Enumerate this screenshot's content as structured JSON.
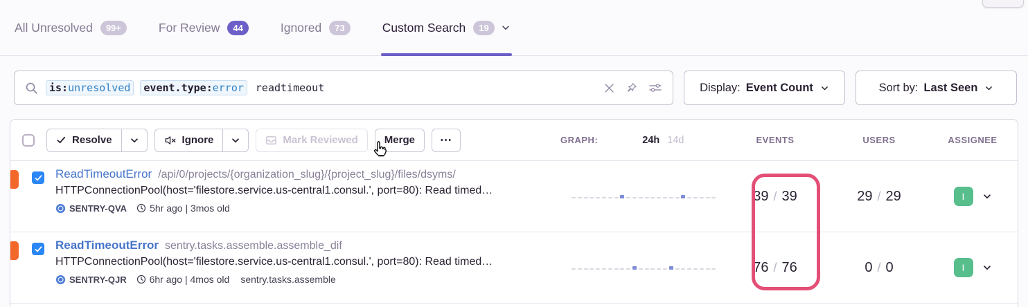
{
  "tabs": [
    {
      "label": "All Unresolved",
      "badge": "99+",
      "active": false
    },
    {
      "label": "For Review",
      "badge": "44",
      "active": false
    },
    {
      "label": "Ignored",
      "badge": "73",
      "active": false
    },
    {
      "label": "Custom Search",
      "badge": "19",
      "active": true
    }
  ],
  "search": {
    "tokens": [
      {
        "key": "is:",
        "value": "unresolved"
      },
      {
        "key": "event.type:",
        "value": "error"
      }
    ],
    "free_text": "readtimeout"
  },
  "display_dropdown": {
    "label": "Display:",
    "value": "Event Count"
  },
  "sort_dropdown": {
    "label": "Sort by:",
    "value": "Last Seen"
  },
  "toolbar": {
    "resolve_label": "Resolve",
    "ignore_label": "Ignore",
    "mark_reviewed_label": "Mark Reviewed",
    "merge_label": "Merge",
    "more_label": "⋯"
  },
  "columns": {
    "graph": "GRAPH:",
    "range_24h": "24h",
    "range_14d": "14d",
    "events": "EVENTS",
    "users": "USERS",
    "assignee": "ASSIGNEE"
  },
  "ui": {
    "count_divider": "/"
  },
  "rows": [
    {
      "title": "ReadTimeoutError",
      "subtitle": "/api/0/projects/{organization_slug}/{project_slug}/files/dsyms/",
      "message": "HTTPConnectionPool(host='filestore.service.us-central1.consul.', port=80): Read timed…",
      "project": "SENTRY-QVA",
      "age": "5hr ago | 3mos old",
      "events": "39",
      "events_total": "39",
      "users": "29",
      "users_total": "29",
      "assignee_initial": "I",
      "graph": [
        0,
        0,
        0,
        0,
        0,
        0,
        0,
        0,
        1,
        0,
        0,
        0,
        0,
        0,
        0,
        0,
        0,
        0,
        1,
        0,
        0,
        0,
        0,
        0
      ]
    },
    {
      "title": "ReadTimeoutError",
      "subtitle": "sentry.tasks.assemble.assemble_dif",
      "message": "HTTPConnectionPool(host='filestore.service.us-central1.consul.', port=80): Read timed…",
      "project": "SENTRY-QJR",
      "age": "6hr ago | 4mos old",
      "extra_tag": "sentry.tasks.assemble",
      "events": "76",
      "events_total": "76",
      "users": "0",
      "users_total": "0",
      "assignee_initial": "I",
      "graph": [
        0,
        0,
        0,
        0,
        0,
        0,
        0,
        0,
        0,
        0,
        1,
        0,
        0,
        0,
        0,
        0,
        1,
        0,
        0,
        0,
        0,
        0,
        0,
        0
      ]
    }
  ],
  "icons": {
    "search": "magnifier",
    "clear_search": "x-cross",
    "pin": "pushpin",
    "filter_sliders": "sliders",
    "resolve_check": "checkmark",
    "ignore_mute": "muted-speaker",
    "mark_reviewed": "archive-box",
    "chevron": "chevron-down",
    "clock": "clock",
    "project": "sentry-logo-circle"
  },
  "colors": {
    "accent_purple": "#6C5FC7",
    "link_blue": "#4674CA",
    "checkbox_blue": "#2B87F5",
    "level_orange": "#F4672A",
    "assignee_green": "#57BE8C",
    "annotation_pink": "#E34F77",
    "token_blue": "#3183C8",
    "header_gray": "#80708F"
  }
}
